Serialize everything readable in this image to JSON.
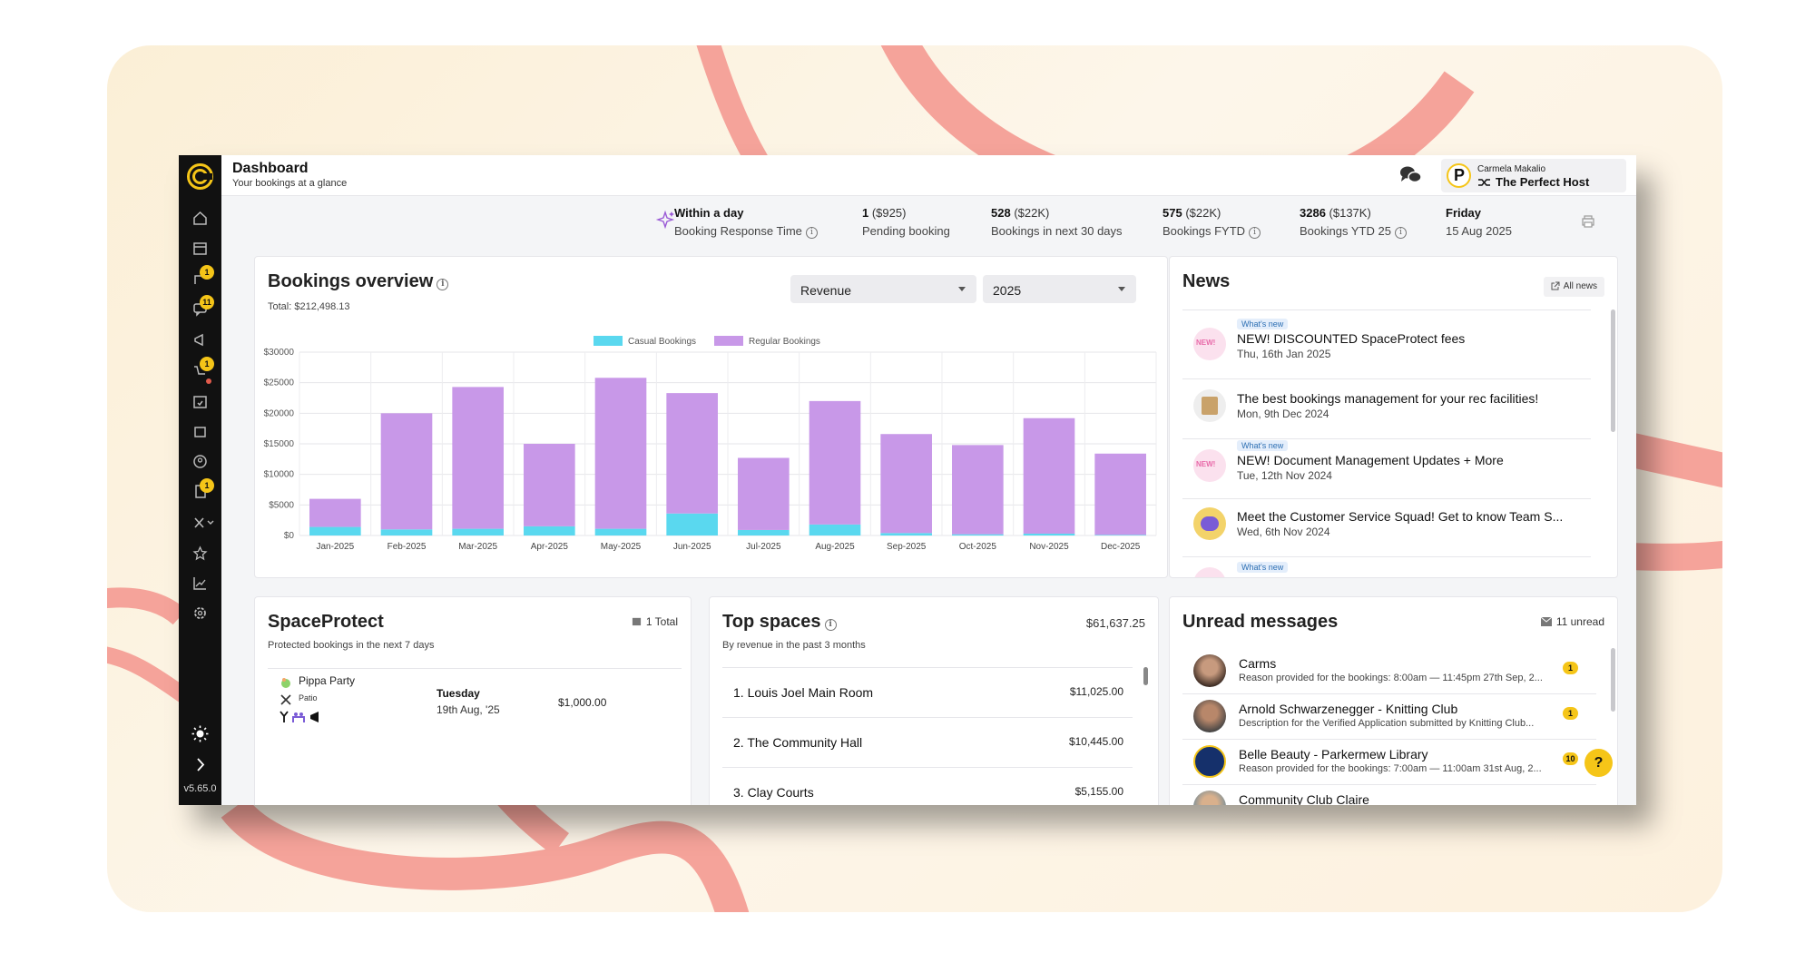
{
  "header": {
    "title": "Dashboard",
    "subtitle": "Your bookings at a glance"
  },
  "profile": {
    "name": "Carmela Makalio",
    "org": "The Perfect Host",
    "logo_letter": "P"
  },
  "sidebar": {
    "icons": [
      "home-icon",
      "calendar-icon",
      "bookings-icon",
      "messages-icon",
      "megaphone-icon",
      "cart-icon",
      "calendar-check-icon",
      "spaces-icon",
      "user-circle-icon",
      "document-icon",
      "tools-icon",
      "star-icon",
      "chart-icon",
      "settings-icon"
    ],
    "badges": {
      "bookings": "1",
      "messages": "11",
      "cart": "1",
      "document": "1"
    },
    "version": "v5.65.0"
  },
  "stats": {
    "response": {
      "value": "Within a day",
      "label": "Booking Response Time"
    },
    "pending": {
      "value": "1",
      "extra": " ($925)",
      "label": "Pending booking"
    },
    "next30": {
      "value": "528",
      "extra": " ($22K)",
      "label": "Bookings in next 30 days"
    },
    "fytd": {
      "value": "575",
      "extra": " ($22K)",
      "label": "Bookings FYTD"
    },
    "ytd": {
      "value": "3286",
      "extra": " ($137K)",
      "label": "Bookings YTD 25"
    },
    "date": {
      "value": "Friday",
      "label": "15 Aug 2025"
    }
  },
  "overview": {
    "title": "Bookings overview",
    "total": "Total: $212,498.13",
    "metric_select": "Revenue",
    "year_select": "2025"
  },
  "chart_data": {
    "type": "bar",
    "stacked": true,
    "categories": [
      "Jan-2025",
      "Feb-2025",
      "Mar-2025",
      "Apr-2025",
      "May-2025",
      "Jun-2025",
      "Jul-2025",
      "Aug-2025",
      "Sep-2025",
      "Oct-2025",
      "Nov-2025",
      "Dec-2025"
    ],
    "series": [
      {
        "name": "Casual Bookings",
        "color": "#5ad8ef",
        "values": [
          1400,
          1000,
          1100,
          1500,
          1100,
          3600,
          900,
          1800,
          400,
          200,
          300,
          100
        ]
      },
      {
        "name": "Regular Bookings",
        "color": "#c898e8",
        "values": [
          4600,
          19000,
          23200,
          13500,
          24700,
          19700,
          11800,
          20200,
          16200,
          14600,
          18900,
          13300
        ]
      }
    ],
    "ylim": [
      0,
      30000
    ],
    "yticks": [
      "$0",
      "$5000",
      "$10000",
      "$15000",
      "$20000",
      "$25000",
      "$30000"
    ],
    "grid": true,
    "legend": "top-center"
  },
  "news": {
    "title": "News",
    "all_label": "All news",
    "items": [
      {
        "tag": "What's new",
        "title": "NEW! DISCOUNTED SpaceProtect fees",
        "date": "Thu, 16th Jan 2025"
      },
      {
        "tag": "",
        "title": "The best bookings management for your rec facilities!",
        "date": "Mon, 9th Dec 2024"
      },
      {
        "tag": "What's new",
        "title": "NEW! Document Management Updates + More",
        "date": "Tue, 12th Nov 2024"
      },
      {
        "tag": "",
        "title": "Meet the Customer Service Squad! Get to know Team S...",
        "date": "Wed, 6th Nov 2024"
      },
      {
        "tag": "What's new",
        "title": "",
        "date": ""
      }
    ]
  },
  "spaceprotect": {
    "title": "SpaceProtect",
    "subtitle": "Protected bookings in the next 7 days",
    "total": "1 Total",
    "booking": {
      "name": "Pippa Party",
      "space": "Patio",
      "day": "Tuesday",
      "date": "19th Aug, '25",
      "amount": "$1,000.00"
    }
  },
  "top_spaces": {
    "title": "Top spaces",
    "subtitle": "By revenue in the past 3 months",
    "total": "$61,637.25",
    "rows": [
      {
        "name": "1. Louis Joel Main Room",
        "amount": "$11,025.00"
      },
      {
        "name": "2. The Community Hall",
        "amount": "$10,445.00"
      },
      {
        "name": "3. Clay Courts",
        "amount": "$5,155.00"
      }
    ]
  },
  "messages": {
    "title": "Unread messages",
    "count": "11 unread",
    "rows": [
      {
        "name": "Carms",
        "text": "Reason provided for the bookings: 8:00am — 11:45pm 27th Sep, 2...",
        "badge": "1"
      },
      {
        "name": "Arnold Schwarzenegger - Knitting Club",
        "text": "Description for the Verified Application submitted by Knitting Club...",
        "badge": "1"
      },
      {
        "name": "Belle Beauty - Parkermew Library",
        "text": "Reason provided for the bookings: 7:00am — 11:00am 31st Aug, 2...",
        "badge": "10"
      },
      {
        "name": "Community Club Claire",
        "text": "",
        "badge": ""
      }
    ]
  },
  "help_label": "?"
}
